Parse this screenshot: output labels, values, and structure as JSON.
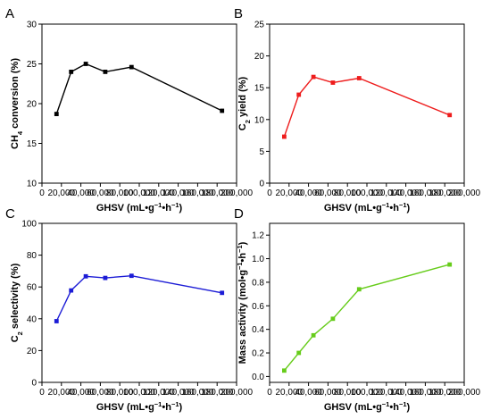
{
  "figure": {
    "panels": [
      "A",
      "B",
      "C",
      "D"
    ]
  },
  "chart_data": [
    {
      "panel": "A",
      "type": "line",
      "color": "#000000",
      "x": [
        15000,
        30000,
        45000,
        65000,
        92000,
        185000
      ],
      "y": [
        18.7,
        24.0,
        25.0,
        24.0,
        24.6,
        19.1
      ],
      "xlim": [
        0,
        200000
      ],
      "ylim": [
        10,
        30
      ],
      "xticks": [
        "0",
        "20,000",
        "40,000",
        "60,000",
        "80,000",
        "100,000",
        "120,000",
        "140,000",
        "160,000",
        "180,000",
        "200,000"
      ],
      "yticks": [
        "10",
        "15",
        "20",
        "25",
        "30"
      ],
      "ytick_values": [
        10,
        15,
        20,
        25,
        30
      ],
      "xlabel": [
        "GHSV (mL•g",
        "−1",
        "•h",
        "−1",
        ")"
      ],
      "ylabel": [
        "CH",
        "4",
        " conversion (%)"
      ],
      "grid": false
    },
    {
      "panel": "B",
      "type": "line",
      "color": "#ee1c1c",
      "x": [
        15000,
        30000,
        45000,
        65000,
        92000,
        185000
      ],
      "y": [
        7.3,
        13.9,
        16.7,
        15.8,
        16.5,
        10.7
      ],
      "xlim": [
        0,
        200000
      ],
      "ylim": [
        0,
        25
      ],
      "xticks": [
        "0",
        "20,000",
        "40,000",
        "60,000",
        "80,000",
        "100,000",
        "120,000",
        "140,000",
        "160,000",
        "180,000",
        "200,000"
      ],
      "yticks": [
        "0",
        "5",
        "10",
        "15",
        "20",
        "25"
      ],
      "ytick_values": [
        0,
        5,
        10,
        15,
        20,
        25
      ],
      "xlabel": [
        "GHSV (mL•g",
        "−1",
        "•h",
        "−1",
        ")"
      ],
      "ylabel": [
        "C",
        "2",
        " yield (%)"
      ],
      "grid": false
    },
    {
      "panel": "C",
      "type": "line",
      "color": "#1c1cd6",
      "x": [
        15000,
        30000,
        45000,
        65000,
        92000,
        185000
      ],
      "y": [
        38.5,
        57.8,
        66.7,
        65.7,
        67.0,
        56.3
      ],
      "xlim": [
        0,
        200000
      ],
      "ylim": [
        0,
        100
      ],
      "xticks": [
        "0",
        "20,000",
        "40,000",
        "60,000",
        "80,000",
        "100,000",
        "120,000",
        "140,000",
        "160,000",
        "180,000",
        "200,000"
      ],
      "yticks": [
        "0",
        "20",
        "40",
        "60",
        "80",
        "100"
      ],
      "ytick_values": [
        0,
        20,
        40,
        60,
        80,
        100
      ],
      "xlabel": [
        "GHSV (mL•g",
        "−1",
        "•h",
        "−1",
        ")"
      ],
      "ylabel": [
        "C",
        "2",
        " selectivity (%)"
      ],
      "grid": false
    },
    {
      "panel": "D",
      "type": "line",
      "color": "#66cc1a",
      "x": [
        15000,
        30000,
        45000,
        65000,
        92000,
        185000
      ],
      "y": [
        0.05,
        0.2,
        0.35,
        0.49,
        0.74,
        0.95
      ],
      "xlim": [
        0,
        200000
      ],
      "ylim": [
        -0.05,
        1.3
      ],
      "xticks": [
        "0",
        "20,000",
        "40,000",
        "60,000",
        "80,000",
        "100,000",
        "120,000",
        "140,000",
        "160,000",
        "180,000",
        "200,000"
      ],
      "yticks": [
        "0.0",
        "0.2",
        "0.4",
        "0.6",
        "0.8",
        "1.0",
        "1.2"
      ],
      "ytick_values": [
        0,
        0.2,
        0.4,
        0.6,
        0.8,
        1.0,
        1.2
      ],
      "xlabel": [
        "GHSV (mL•g",
        "−1",
        "•h",
        "−1",
        ")"
      ],
      "ylabel": [
        "Mass activity (mol•g",
        "−1",
        "•h",
        "−1",
        ")"
      ],
      "grid": false
    }
  ]
}
